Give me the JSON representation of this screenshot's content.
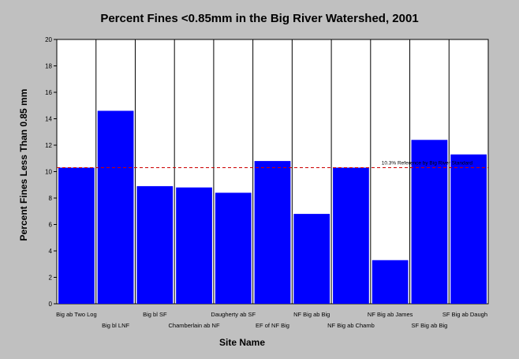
{
  "chart_data": {
    "type": "bar",
    "title": "Percent Fines <0.85mm in the Big River Watershed, 2001",
    "xlabel": "Site Name",
    "ylabel": "Percent Fines Less Than 0.85 mm",
    "ylim": [
      0,
      20
    ],
    "yticks": [
      "0",
      "2",
      "4",
      "6",
      "8",
      "10",
      "12",
      "14",
      "16",
      "18",
      "20"
    ],
    "categories": [
      "Big ab Two Log",
      "Big bl LNF",
      "Big bl SF",
      "Chamberlain ab NF",
      "Daugherty ab SF",
      "EF of NF Big",
      "NF Big ab Big",
      "NF Big ab Chamb",
      "NF Big ab James",
      "SF Big ab Big",
      "SF Big ab Daugh"
    ],
    "values": [
      10.3,
      14.6,
      8.9,
      8.8,
      8.4,
      10.8,
      6.8,
      10.3,
      3.3,
      12.4,
      11.3
    ],
    "bar_color": "#0000ff",
    "reference": {
      "value": 10.3,
      "label": "10.3% Reference by Big River Standard",
      "color": "#cc0000"
    },
    "grid": "vertical"
  }
}
